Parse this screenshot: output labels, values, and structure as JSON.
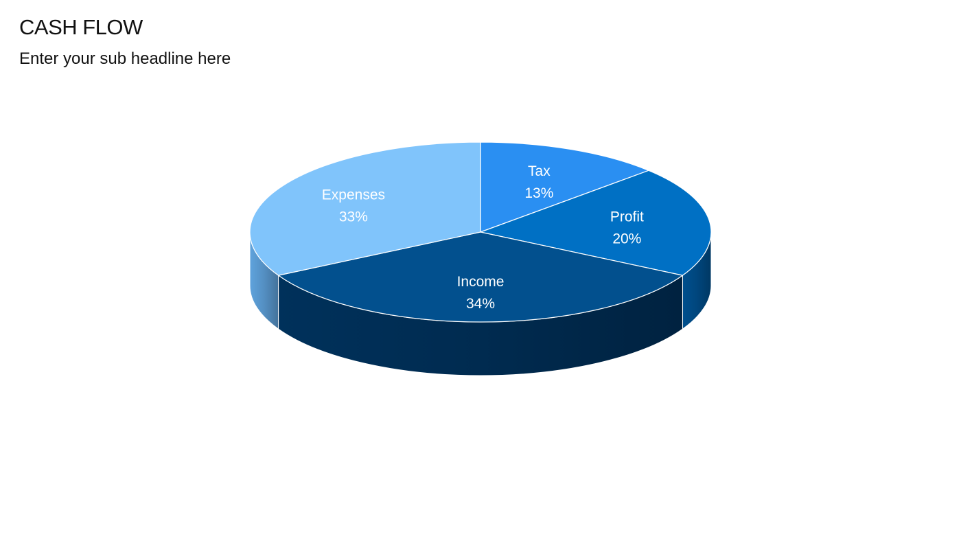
{
  "slide": {
    "title": "CASH FLOW",
    "subtitle": "Enter your sub headline here"
  },
  "chart_data": {
    "type": "pie",
    "style": "3d",
    "categories": [
      "Tax",
      "Profit",
      "Income",
      "Expenses"
    ],
    "values": [
      13,
      20,
      34,
      33
    ],
    "value_labels": [
      "13%",
      "20%",
      "34%",
      "33%"
    ],
    "colors": [
      "#2a8ff2",
      "#0070c4",
      "#02508e",
      "#80c4fb"
    ],
    "side_colors": [
      "#1a6cc0",
      "#00508e",
      "#00315b",
      "#5fa3dd"
    ],
    "start_angle_deg": 0,
    "direction": "clockwise",
    "legend": "none",
    "data_labels": "inside"
  }
}
